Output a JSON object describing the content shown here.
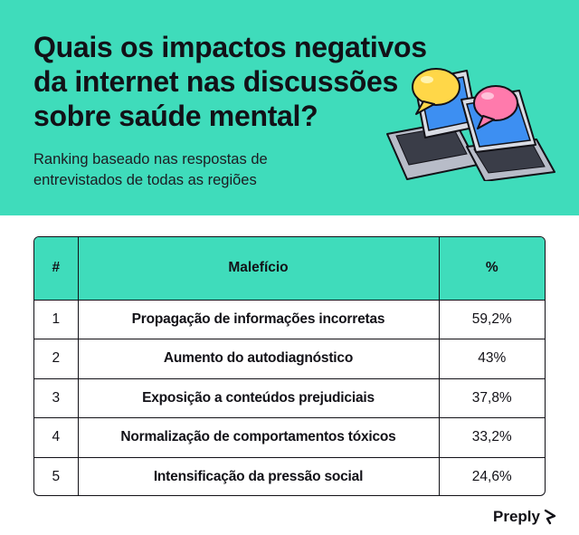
{
  "header": {
    "title": "Quais os impactos negativos da internet nas discussões sobre saúde mental?",
    "subtitle": "Ranking baseado nas respostas de entrevistados de todas as regiões"
  },
  "chart_data": {
    "type": "table",
    "columns": [
      "#",
      "Malefício",
      "%"
    ],
    "rows": [
      {
        "rank": "1",
        "name": "Propagação de informações incorretas",
        "pct": "59,2%"
      },
      {
        "rank": "2",
        "name": "Aumento do autodiagnóstico",
        "pct": "43%"
      },
      {
        "rank": "3",
        "name": "Exposição a conteúdos prejudiciais",
        "pct": "37,8%"
      },
      {
        "rank": "4",
        "name": "Normalização de comportamentos tóxicos",
        "pct": "33,2%"
      },
      {
        "rank": "5",
        "name": "Intensificação da pressão social",
        "pct": "24,6%"
      }
    ]
  },
  "brand": {
    "name": "Preply",
    "icon": "preply-logo-icon"
  },
  "illustration": {
    "icons": [
      "laptop-icon",
      "speech-bubble-icon"
    ]
  },
  "colors": {
    "accent": "#3fdcbb",
    "ink": "#121117",
    "bubble_yellow": "#ffd748",
    "bubble_pink": "#ff7aac",
    "screen_blue": "#3d8ff2"
  }
}
